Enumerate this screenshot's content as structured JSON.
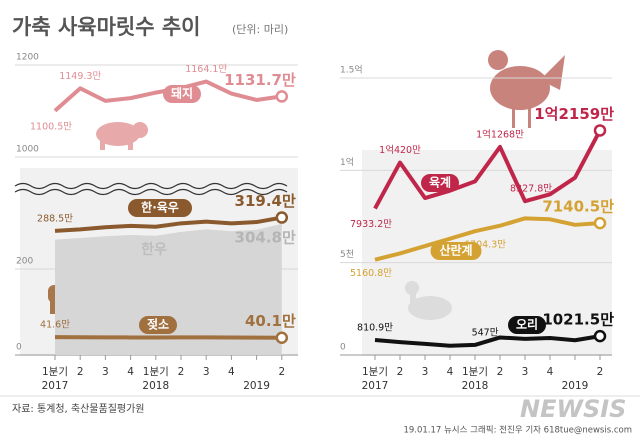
{
  "header": {
    "title": "가축 사육마릿수 추이",
    "unit": "(단위: 마리)"
  },
  "footer": {
    "source": "자료: 통계청, 축산물품질평가원",
    "credit": "19.01.17 뉴시스 그래픽: 전진우 기자 618tue@newsis.com",
    "logo": "NEWSIS"
  },
  "chart_data": [
    {
      "type": "line",
      "ylim": [
        1000,
        1200
      ],
      "yticks": [
        1000,
        1200
      ],
      "grid": true,
      "series": [
        {
          "name": "돼지",
          "color": "#df8c92",
          "values": [
            1100.5,
            1149.3,
            1122,
            1128,
            1140,
            1150,
            1164.1,
            1138,
            1124,
            1131.7
          ],
          "value_labels": [
            "1100.5만",
            "1149.3만",
            null,
            null,
            null,
            null,
            "1164.1만",
            null,
            null,
            "1131.7만"
          ]
        }
      ]
    },
    {
      "type": "line",
      "ylim": [
        0,
        330
      ],
      "yticks": [
        0,
        200
      ],
      "grid": true,
      "categories": [
        "1분기",
        "2",
        "3",
        "4",
        "1분기",
        "2",
        "3",
        "4",
        null,
        "2"
      ],
      "years": [
        "2017",
        "2018",
        "2019"
      ],
      "series": [
        {
          "name": "한우",
          "type": "area",
          "color": "#d6d6d6",
          "values": [
            268,
            272,
            276,
            279,
            277,
            286,
            292,
            288,
            291,
            304.8
          ],
          "value_labels": [
            null,
            null,
            null,
            null,
            null,
            null,
            null,
            null,
            null,
            "304.8만"
          ]
        },
        {
          "name": "한·육우",
          "color": "#8a5a2e",
          "values": [
            288.5,
            292,
            297,
            300,
            298,
            306,
            310,
            306,
            309,
            319.4
          ],
          "value_labels": [
            "288.5만",
            null,
            null,
            null,
            null,
            null,
            null,
            null,
            null,
            "319.4만"
          ]
        },
        {
          "name": "젖소",
          "color": "#a0703f",
          "values": [
            41.6,
            41.3,
            41,
            40.8,
            40.7,
            40.9,
            41,
            40.8,
            40.5,
            40.1
          ],
          "value_labels": [
            "41.6만",
            null,
            null,
            null,
            null,
            null,
            null,
            null,
            null,
            "40.1만"
          ]
        }
      ]
    },
    {
      "type": "line",
      "ylim": [
        0,
        15000
      ],
      "yticks": [
        0,
        {
          "value": 5000,
          "label": "5천"
        },
        {
          "value": 10000,
          "label": "1억"
        },
        {
          "value": 15000,
          "label": "1.5억"
        }
      ],
      "grid": true,
      "categories": [
        "1분기",
        "2",
        "3",
        "4",
        "1분기",
        "2",
        "3",
        "4",
        null,
        "2"
      ],
      "years": [
        "2017",
        "2018",
        "2019"
      ],
      "series": [
        {
          "name": "육계",
          "color": "#c0264a",
          "values": [
            7933.2,
            10420,
            8500,
            8900,
            9400,
            11268,
            8327.8,
            8700,
            9600,
            12159
          ],
          "value_labels": [
            "7933.2만",
            "1억420만",
            null,
            null,
            null,
            "1억1268만",
            "8327.8만",
            null,
            null,
            "1억2159만"
          ]
        },
        {
          "name": "산란계",
          "color": "#d4a233",
          "values": [
            5160.8,
            5500,
            5900,
            6300,
            6704.3,
            7000,
            7400,
            7350,
            7050,
            7140.5
          ],
          "value_labels": [
            "5160.8만",
            null,
            null,
            null,
            "6704.3만",
            null,
            null,
            null,
            null,
            "7140.5만"
          ]
        },
        {
          "name": "오리",
          "color": "#111111",
          "values": [
            810.9,
            700,
            600,
            500,
            547,
            950,
            870,
            920,
            800,
            1021.5
          ],
          "value_labels": [
            "810.9만",
            null,
            null,
            null,
            "547만",
            null,
            null,
            null,
            null,
            "1021.5만"
          ]
        }
      ]
    }
  ]
}
